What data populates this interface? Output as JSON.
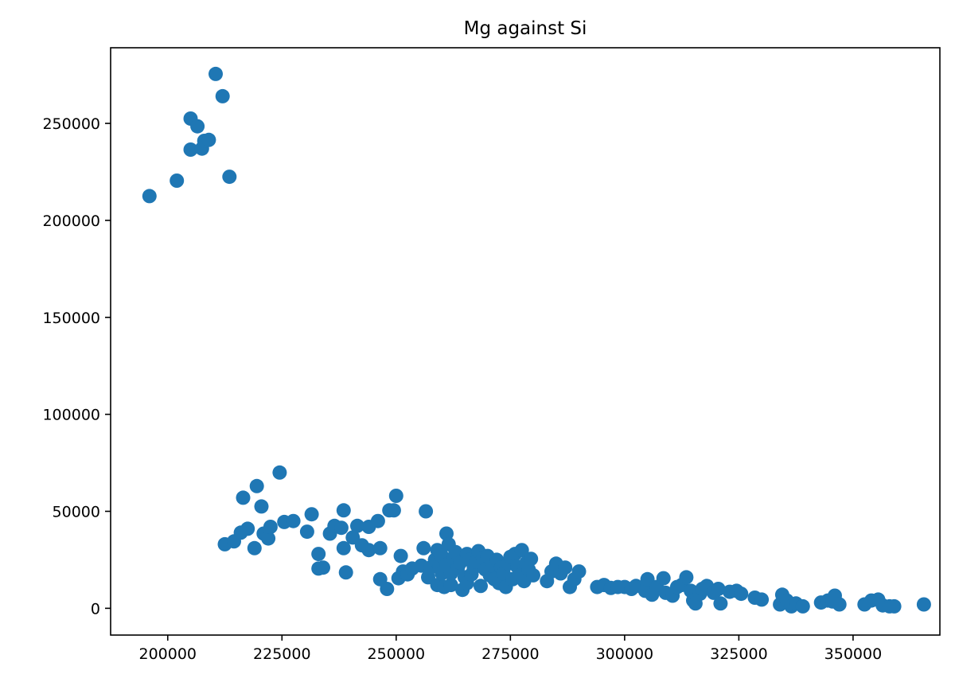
{
  "chart_data": {
    "type": "scatter",
    "title": "Mg against Si",
    "xlabel": "",
    "ylabel": "",
    "xlim": [
      187500,
      369000
    ],
    "ylim": [
      -13800,
      289000
    ],
    "xticks": [
      200000,
      225000,
      250000,
      275000,
      300000,
      325000,
      350000
    ],
    "yticks": [
      0,
      50000,
      100000,
      150000,
      200000,
      250000
    ],
    "grid": false,
    "legend": "none",
    "point_color": "#1f77b4",
    "series": [
      {
        "points": [
          [
            196000,
            212500
          ],
          [
            202000,
            220500
          ],
          [
            205000,
            236500
          ],
          [
            205000,
            252500
          ],
          [
            206500,
            248500
          ],
          [
            207500,
            237000
          ],
          [
            208000,
            241000
          ],
          [
            209000,
            241500
          ],
          [
            210500,
            275500
          ],
          [
            212000,
            264000
          ],
          [
            213500,
            222500
          ],
          [
            212500,
            33000
          ],
          [
            214500,
            34500
          ],
          [
            216000,
            39000
          ],
          [
            216500,
            57000
          ],
          [
            217500,
            41000
          ],
          [
            219000,
            31000
          ],
          [
            219500,
            63000
          ],
          [
            220500,
            52500
          ],
          [
            221000,
            38500
          ],
          [
            222000,
            36000
          ],
          [
            222500,
            42000
          ],
          [
            224500,
            70000
          ],
          [
            225500,
            44500
          ],
          [
            227500,
            45000
          ],
          [
            230500,
            39500
          ],
          [
            231500,
            48500
          ],
          [
            233000,
            28000
          ],
          [
            233000,
            20500
          ],
          [
            234000,
            21000
          ],
          [
            235500,
            38500
          ],
          [
            236500,
            42500
          ],
          [
            238000,
            41500
          ],
          [
            238500,
            31000
          ],
          [
            238500,
            50500
          ],
          [
            239000,
            18500
          ],
          [
            240500,
            36500
          ],
          [
            241500,
            42500
          ],
          [
            242500,
            32500
          ],
          [
            244000,
            42000
          ],
          [
            244000,
            30000
          ],
          [
            246000,
            45000
          ],
          [
            246500,
            31000
          ],
          [
            246500,
            15000
          ],
          [
            248000,
            10000
          ],
          [
            248500,
            50500
          ],
          [
            249500,
            50500
          ],
          [
            250000,
            58000
          ],
          [
            250500,
            15500
          ],
          [
            251000,
            27000
          ],
          [
            251500,
            19000
          ],
          [
            252500,
            17500
          ],
          [
            253500,
            20500
          ],
          [
            255500,
            22000
          ],
          [
            256000,
            31000
          ],
          [
            256500,
            50000
          ],
          [
            257000,
            16000
          ],
          [
            257500,
            21000
          ],
          [
            258500,
            25000
          ],
          [
            259000,
            30000
          ],
          [
            259000,
            12000
          ],
          [
            259500,
            21500
          ],
          [
            260000,
            18000
          ],
          [
            260000,
            27000
          ],
          [
            260500,
            11000
          ],
          [
            261000,
            22500
          ],
          [
            261000,
            38500
          ],
          [
            261500,
            33000
          ],
          [
            262000,
            12000
          ],
          [
            262000,
            18000
          ],
          [
            262500,
            26000
          ],
          [
            263000,
            29000
          ],
          [
            263500,
            21000
          ],
          [
            264000,
            23500
          ],
          [
            264500,
            9500
          ],
          [
            265000,
            16000
          ],
          [
            265500,
            28000
          ],
          [
            265500,
            13000
          ],
          [
            266000,
            25000
          ],
          [
            266500,
            17500
          ],
          [
            267000,
            21000
          ],
          [
            267500,
            24000
          ],
          [
            268000,
            29500
          ],
          [
            268500,
            11500
          ],
          [
            269000,
            26000
          ],
          [
            269500,
            20000
          ],
          [
            270000,
            27000
          ],
          [
            270500,
            17000
          ],
          [
            271000,
            22000
          ],
          [
            271500,
            15000
          ],
          [
            272000,
            25000
          ],
          [
            272500,
            13000
          ],
          [
            273000,
            21000
          ],
          [
            273500,
            18000
          ],
          [
            274000,
            11000
          ],
          [
            274500,
            23000
          ],
          [
            275000,
            26500
          ],
          [
            275500,
            15000
          ],
          [
            276000,
            28000
          ],
          [
            276500,
            21500
          ],
          [
            277000,
            17000
          ],
          [
            277500,
            30000
          ],
          [
            278000,
            14000
          ],
          [
            278500,
            23500
          ],
          [
            279000,
            20000
          ],
          [
            279500,
            25500
          ],
          [
            280000,
            17000
          ],
          [
            283000,
            14000
          ],
          [
            284000,
            19000
          ],
          [
            285000,
            23000
          ],
          [
            286000,
            18000
          ],
          [
            287000,
            21000
          ],
          [
            288000,
            11000
          ],
          [
            289000,
            15000
          ],
          [
            290000,
            19000
          ],
          [
            294000,
            11000
          ],
          [
            295500,
            12000
          ],
          [
            297000,
            10500
          ],
          [
            298500,
            11000
          ],
          [
            300000,
            11000
          ],
          [
            301500,
            10000
          ],
          [
            302500,
            11500
          ],
          [
            304500,
            9000
          ],
          [
            305000,
            12000
          ],
          [
            305000,
            15000
          ],
          [
            306000,
            7000
          ],
          [
            307000,
            11000
          ],
          [
            308500,
            15500
          ],
          [
            309000,
            8000
          ],
          [
            310500,
            6500
          ],
          [
            311500,
            11000
          ],
          [
            312500,
            12000
          ],
          [
            313500,
            16000
          ],
          [
            314500,
            9000
          ],
          [
            315000,
            4000
          ],
          [
            315500,
            2500
          ],
          [
            316500,
            7500
          ],
          [
            317000,
            10000
          ],
          [
            318000,
            11500
          ],
          [
            319500,
            8000
          ],
          [
            320500,
            10000
          ],
          [
            321000,
            2500
          ],
          [
            323000,
            8500
          ],
          [
            324500,
            9000
          ],
          [
            325500,
            7500
          ],
          [
            328500,
            5500
          ],
          [
            330000,
            4500
          ],
          [
            334000,
            2000
          ],
          [
            334500,
            7000
          ],
          [
            335500,
            4000
          ],
          [
            336500,
            1000
          ],
          [
            337500,
            2500
          ],
          [
            339000,
            1000
          ],
          [
            343000,
            3000
          ],
          [
            344500,
            4000
          ],
          [
            345500,
            3500
          ],
          [
            346000,
            6500
          ],
          [
            347000,
            2000
          ],
          [
            352500,
            2000
          ],
          [
            354000,
            4000
          ],
          [
            355500,
            4500
          ],
          [
            356500,
            1500
          ],
          [
            358000,
            1000
          ],
          [
            359000,
            1000
          ],
          [
            365500,
            2000
          ]
        ]
      }
    ]
  }
}
